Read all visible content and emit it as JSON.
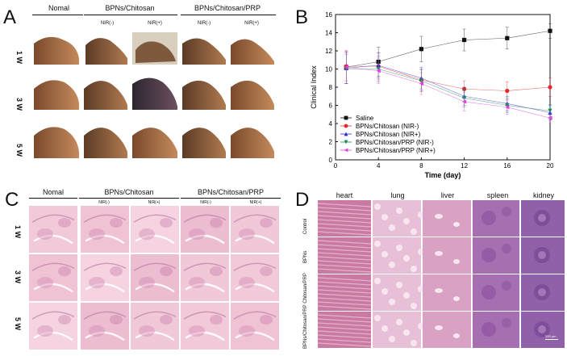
{
  "panels": {
    "a": {
      "label": "A",
      "groups": [
        "Nomal",
        "BPNs/Chitosan",
        "BPNs/Chitosan/PRP"
      ],
      "subheaders": [
        "NIR(-)",
        "NIR(+)",
        "NIR(-)",
        "NIR(+)"
      ],
      "rows": [
        "1 W",
        "3 W",
        "5 W"
      ]
    },
    "b": {
      "label": "B"
    },
    "c": {
      "label": "C",
      "groups": [
        "Nomal",
        "BPNs/Chitosan",
        "BPNs/Chitosan/PRP"
      ],
      "subheaders": [
        "NIR(-)",
        "NIR(+)",
        "NIR(-)",
        "NIR(+)"
      ],
      "rows": [
        "1 W",
        "3 W",
        "5 W"
      ]
    },
    "d": {
      "label": "D",
      "columns": [
        "heart",
        "lung",
        "liver",
        "spleen",
        "kidney"
      ],
      "rows": [
        "Control",
        "BPNs",
        "BPNs/Chitosan/PRP Chitosan/PRP"
      ],
      "scale_bar": "200 μm"
    }
  },
  "chart_data": {
    "type": "line",
    "xlabel": "Time (day)",
    "ylabel": "Clinical Index",
    "xlim": [
      0,
      20
    ],
    "ylim": [
      0,
      16
    ],
    "xticks": [
      0,
      4,
      8,
      12,
      16,
      20
    ],
    "yticks": [
      0,
      2,
      4,
      6,
      8,
      10,
      12,
      14,
      16
    ],
    "x": [
      1,
      4,
      8,
      12,
      16,
      20
    ],
    "legend_position": "bottom-left",
    "series": [
      {
        "name": "Saline",
        "color": "#111111",
        "marker": "square",
        "values": [
          10.2,
          10.8,
          12.2,
          13.2,
          13.4,
          14.2
        ],
        "errors": [
          1.8,
          1.6,
          1.4,
          1.2,
          1.2,
          0.8
        ]
      },
      {
        "name": "BPNs/Chitosan (NIR-)",
        "color": "#e8262a",
        "marker": "circle",
        "values": [
          10.3,
          10.3,
          8.8,
          7.8,
          7.6,
          8.0
        ],
        "errors": [
          1.6,
          1.5,
          1.2,
          0.9,
          1.0,
          1.0
        ]
      },
      {
        "name": "BPNs/Chitosan (NIR+)",
        "color": "#2a2adb",
        "marker": "triangle-up",
        "values": [
          10.1,
          10.4,
          9.0,
          7.0,
          6.2,
          5.2
        ],
        "errors": [
          1.7,
          1.4,
          1.2,
          1.0,
          0.8,
          0.8
        ]
      },
      {
        "name": "BPNs/Chitosan/PRP (NIR-)",
        "color": "#1a8a5a",
        "marker": "triangle-down",
        "values": [
          10.0,
          10.0,
          8.7,
          6.8,
          6.0,
          5.4
        ],
        "errors": [
          1.6,
          1.4,
          1.2,
          1.0,
          0.8,
          0.7
        ]
      },
      {
        "name": "BPNs/Chitosan/PRP (NIR+)",
        "color": "#e040e0",
        "marker": "triangle-left",
        "values": [
          10.2,
          9.8,
          8.4,
          6.4,
          5.8,
          4.6
        ],
        "errors": [
          1.8,
          1.4,
          1.2,
          1.0,
          0.8,
          0.6
        ]
      }
    ]
  },
  "colors": {
    "paw_light": "#c98a58",
    "paw_dark": "#6a4026",
    "he_pink": "#f0c6d6",
    "he_purple": "#a8609a",
    "d_heart": "#c97aa2",
    "d_lung": "#e7bfd6",
    "d_liver": "#d9a2c4",
    "d_spleen": "#a66fb1",
    "d_kidney": "#9061a8"
  }
}
